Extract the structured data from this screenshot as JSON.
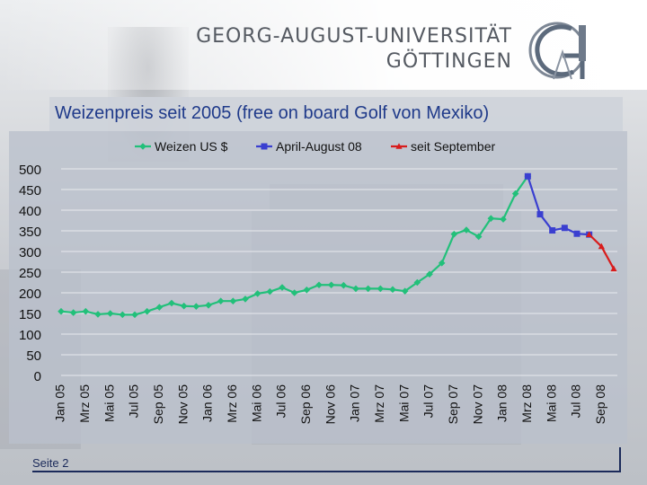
{
  "header": {
    "university_line1": "GEORG-AUGUST-UNIVERSITÄT",
    "university_line2": "GÖTTINGEN"
  },
  "slide": {
    "title": "Weizenpreis seit 2005 (free on board Golf von Mexiko)",
    "page_label": "Seite 2"
  },
  "colors": {
    "series_weizen": "#22c07a",
    "series_april_aug": "#3a3fd0",
    "series_september": "#d81c1c",
    "title_text": "#1f3a8a"
  },
  "chart_data": {
    "type": "line",
    "ylim": [
      0,
      500
    ],
    "yticks": [
      0,
      50,
      100,
      150,
      200,
      250,
      300,
      350,
      400,
      450,
      500
    ],
    "categories": [
      "Jan 05",
      "Mrz 05",
      "Mai 05",
      "Jul 05",
      "Sep 05",
      "Nov 05",
      "Jan 06",
      "Mrz 06",
      "Mai 06",
      "Jul 06",
      "Sep 06",
      "Nov 06",
      "Jan 07",
      "Mrz 07",
      "Mai 07",
      "Jul 07",
      "Sep 07",
      "Nov 07",
      "Jan 08",
      "Mrz 08",
      "Mai 08",
      "Jul 08",
      "Sep 08"
    ],
    "x": [
      "Jan 05",
      "Feb 05",
      "Mrz 05",
      "Apr 05",
      "Mai 05",
      "Jun 05",
      "Jul 05",
      "Aug 05",
      "Sep 05",
      "Okt 05",
      "Nov 05",
      "Dez 05",
      "Jan 06",
      "Feb 06",
      "Mrz 06",
      "Apr 06",
      "Mai 06",
      "Jun 06",
      "Jul 06",
      "Aug 06",
      "Sep 06",
      "Okt 06",
      "Nov 06",
      "Dez 06",
      "Jan 07",
      "Feb 07",
      "Mrz 07",
      "Apr 07",
      "Mai 07",
      "Jun 07",
      "Jul 07",
      "Aug 07",
      "Sep 07",
      "Okt 07",
      "Nov 07",
      "Dez 07",
      "Jan 08",
      "Feb 08",
      "Mrz 08",
      "Apr 08",
      "Mai 08",
      "Jun 08",
      "Jul 08",
      "Aug 08",
      "Sep 08",
      "Okt 08"
    ],
    "legend_position": "top",
    "series": [
      {
        "name": "Weizen US $",
        "marker": "diamond",
        "color": "#22c07a",
        "values": [
          155,
          152,
          155,
          148,
          150,
          147,
          147,
          155,
          165,
          175,
          168,
          167,
          170,
          180,
          180,
          185,
          198,
          203,
          213,
          200,
          207,
          219,
          219,
          218,
          210,
          210,
          210,
          208,
          204,
          225,
          245,
          272,
          342,
          352,
          336,
          380,
          378,
          440,
          482,
          null,
          null,
          null,
          null,
          null,
          null,
          null
        ]
      },
      {
        "name": "April-August 08",
        "marker": "square",
        "color": "#3a3fd0",
        "values": [
          null,
          null,
          null,
          null,
          null,
          null,
          null,
          null,
          null,
          null,
          null,
          null,
          null,
          null,
          null,
          null,
          null,
          null,
          null,
          null,
          null,
          null,
          null,
          null,
          null,
          null,
          null,
          null,
          null,
          null,
          null,
          null,
          null,
          null,
          null,
          null,
          null,
          null,
          482,
          390,
          351,
          357,
          343,
          341,
          null,
          null
        ]
      },
      {
        "name": "seit September",
        "marker": "triangle",
        "color": "#d81c1c",
        "values": [
          null,
          null,
          null,
          null,
          null,
          null,
          null,
          null,
          null,
          null,
          null,
          null,
          null,
          null,
          null,
          null,
          null,
          null,
          null,
          null,
          null,
          null,
          null,
          null,
          null,
          null,
          null,
          null,
          null,
          null,
          null,
          null,
          null,
          null,
          null,
          null,
          null,
          null,
          null,
          null,
          null,
          null,
          null,
          341,
          312,
          258
        ]
      }
    ]
  }
}
